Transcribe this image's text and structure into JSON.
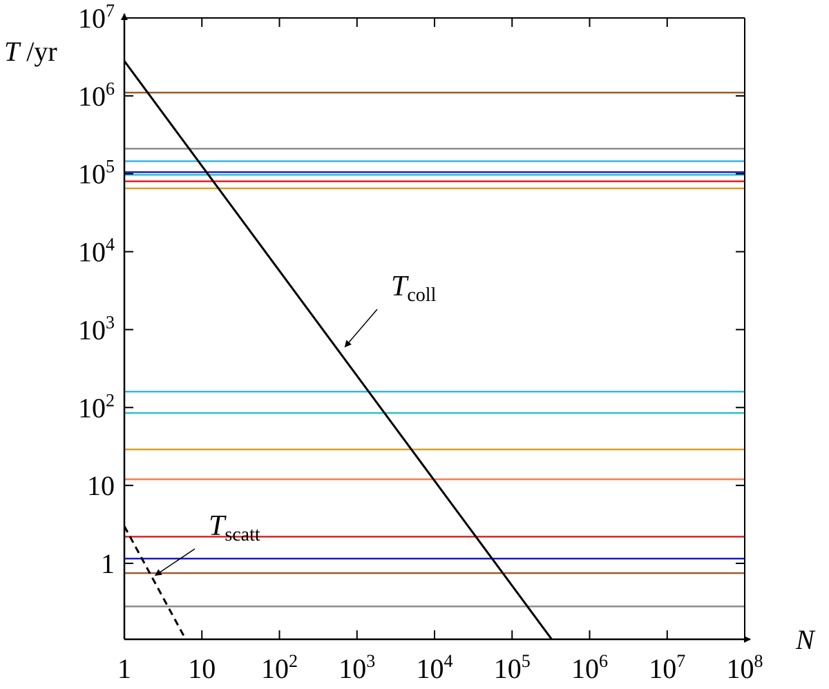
{
  "chart_data": {
    "type": "line",
    "title": "",
    "xlabel": "N",
    "ylabel": "T /yr",
    "xscale": "log",
    "yscale": "log",
    "xlim": [
      1,
      100000000
    ],
    "ylim": [
      0.08,
      10000000
    ],
    "x_ticks": [
      {
        "value": 1,
        "base": "1",
        "exp": ""
      },
      {
        "value": 10,
        "base": "10",
        "exp": ""
      },
      {
        "value": 100,
        "base": "10",
        "exp": "2"
      },
      {
        "value": 1000,
        "base": "10",
        "exp": "3"
      },
      {
        "value": 10000,
        "base": "10",
        "exp": "4"
      },
      {
        "value": 100000,
        "base": "10",
        "exp": "5"
      },
      {
        "value": 1000000,
        "base": "10",
        "exp": "6"
      },
      {
        "value": 10000000,
        "base": "10",
        "exp": "7"
      },
      {
        "value": 100000000,
        "base": "10",
        "exp": "8"
      }
    ],
    "y_ticks": [
      {
        "value": 1,
        "base": "1",
        "exp": ""
      },
      {
        "value": 10,
        "base": "10",
        "exp": ""
      },
      {
        "value": 100,
        "base": "10",
        "exp": "2"
      },
      {
        "value": 1000,
        "base": "10",
        "exp": "3"
      },
      {
        "value": 10000,
        "base": "10",
        "exp": "4"
      },
      {
        "value": 100000,
        "base": "10",
        "exp": "5"
      },
      {
        "value": 1000000,
        "base": "10",
        "exp": "6"
      },
      {
        "value": 10000000,
        "base": "10",
        "exp": "7"
      }
    ],
    "reference_lines": [
      {
        "y": 1100000,
        "color": "#9a5b2e"
      },
      {
        "y": 210000,
        "color": "#8c8c8c"
      },
      {
        "y": 145000,
        "color": "#33b8e6"
      },
      {
        "y": 105000,
        "color": "#1a1acc"
      },
      {
        "y": 97000,
        "color": "#2ec4c4"
      },
      {
        "y": 80000,
        "color": "#e02020"
      },
      {
        "y": 65000,
        "color": "#d9a020"
      },
      {
        "y": 160,
        "color": "#33b8e6"
      },
      {
        "y": 85,
        "color": "#2ec4c4"
      },
      {
        "y": 29,
        "color": "#d9a020"
      },
      {
        "y": 12,
        "color": "#f08050"
      },
      {
        "y": 2.2,
        "color": "#e02020"
      },
      {
        "y": 1.15,
        "color": "#1a1acc"
      },
      {
        "y": 0.75,
        "color": "#9a5b2e"
      },
      {
        "y": 0.28,
        "color": "#8c8c8c"
      }
    ],
    "series": [
      {
        "label": "T_coll",
        "style": "solid",
        "color": "#000000",
        "x": [
          1,
          400000
        ],
        "y": [
          2800000,
          0.08
        ]
      },
      {
        "label": "T_scatt",
        "style": "dashed",
        "color": "#000000",
        "x": [
          1,
          7.2
        ],
        "y": [
          3.0,
          0.08
        ]
      }
    ],
    "annotations": [
      {
        "symbol": "T",
        "subscript": "coll",
        "points_to": {
          "x": 700,
          "y": 600
        }
      },
      {
        "symbol": "T",
        "subscript": "scatt",
        "points_to": {
          "x": 2.5,
          "y": 0.7
        }
      }
    ],
    "grid": false,
    "legend": "none"
  }
}
